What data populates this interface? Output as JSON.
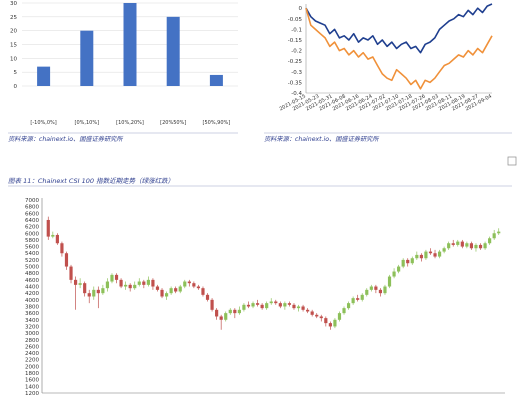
{
  "colors": {
    "bar": "#4472c4",
    "navy_line": "#1f3f8f",
    "orange_line": "#f0913a",
    "candle_up": "#8dc05a",
    "candle_down": "#c0504d",
    "caption": "#2f3f8f"
  },
  "sources": {
    "left": "资料来源：chainext.io、国盛证券研究所",
    "right": "资料来源：chainext.io、国盛证券研究所"
  },
  "figure_caption": "图表 11：Chainext CSI 100 指数近期走势（绿涨红跌）",
  "checkbox": {
    "checked": false
  },
  "chart_data": [
    {
      "type": "bar",
      "categories": [
        "[-10%,0%]",
        "[0%,10%]",
        "[10%,20%]",
        "[20%50%]",
        "[50%,90%]"
      ],
      "values": [
        7,
        20,
        30,
        25,
        4
      ],
      "yticks": [
        0,
        5,
        10,
        15,
        20,
        25,
        30
      ],
      "ylim": [
        0,
        30
      ],
      "grid": true
    },
    {
      "type": "line",
      "yticks": [
        0,
        -0.05,
        -0.1,
        -0.15,
        -0.2,
        -0.25,
        -0.3,
        -0.35,
        -0.4
      ],
      "ylim": [
        -0.4,
        0.02
      ],
      "xlabels": [
        "2021-05-15",
        "2021-05-23",
        "2021-05-31",
        "2021-06-08",
        "2021-06-16",
        "2021-06-24",
        "2021-07-02",
        "2021-07-10",
        "2021-07-18",
        "2021-07-26",
        "2021-08-03",
        "2021-08-11",
        "2021-08-19",
        "2021-08-27",
        "2021-09-04"
      ],
      "series": [
        {
          "color": "navy",
          "values": [
            0.0,
            -0.04,
            -0.06,
            -0.07,
            -0.08,
            -0.12,
            -0.1,
            -0.14,
            -0.13,
            -0.15,
            -0.12,
            -0.16,
            -0.14,
            -0.15,
            -0.13,
            -0.17,
            -0.15,
            -0.18,
            -0.16,
            -0.19,
            -0.17,
            -0.16,
            -0.19,
            -0.18,
            -0.21,
            -0.17,
            -0.16,
            -0.14,
            -0.1,
            -0.08,
            -0.06,
            -0.05,
            -0.03,
            -0.04,
            -0.01,
            -0.03,
            0.0,
            -0.02,
            0.01,
            0.02
          ]
        },
        {
          "color": "orange",
          "values": [
            0.0,
            -0.08,
            -0.1,
            -0.12,
            -0.14,
            -0.18,
            -0.16,
            -0.2,
            -0.19,
            -0.22,
            -0.2,
            -0.23,
            -0.21,
            -0.24,
            -0.23,
            -0.27,
            -0.31,
            -0.33,
            -0.34,
            -0.29,
            -0.31,
            -0.33,
            -0.36,
            -0.34,
            -0.38,
            -0.34,
            -0.35,
            -0.33,
            -0.3,
            -0.27,
            -0.26,
            -0.24,
            -0.22,
            -0.23,
            -0.2,
            -0.22,
            -0.19,
            -0.21,
            -0.17,
            -0.13
          ]
        }
      ]
    },
    {
      "type": "candlestick",
      "yticks": [
        1200,
        1400,
        1600,
        1800,
        2000,
        2200,
        2400,
        2600,
        2800,
        3000,
        3200,
        3400,
        3600,
        3800,
        4000,
        4200,
        4400,
        4600,
        4800,
        5000,
        5200,
        5400,
        5600,
        5800,
        6000,
        6200,
        6400,
        6600,
        6800,
        7000
      ],
      "ylim": [
        1200,
        7000
      ],
      "candles": [
        [
          6400,
          5900,
          6500,
          5800
        ],
        [
          5900,
          5950,
          6050,
          5850
        ],
        [
          5950,
          5700,
          6000,
          5650
        ],
        [
          5700,
          5400,
          5750,
          5300
        ],
        [
          5400,
          5000,
          5450,
          4900
        ],
        [
          5000,
          4600,
          5050,
          4500
        ],
        [
          4600,
          4450,
          4700,
          3700
        ],
        [
          4450,
          4500,
          4650,
          4350
        ],
        [
          4500,
          4200,
          4550,
          4100
        ],
        [
          4200,
          4100,
          4300,
          3900
        ],
        [
          4100,
          4300,
          4400,
          4000
        ],
        [
          4300,
          4200,
          4400,
          3750
        ],
        [
          4200,
          4350,
          4450,
          4150
        ],
        [
          4350,
          4550,
          4650,
          4250
        ],
        [
          4550,
          4750,
          4800,
          4500
        ],
        [
          4750,
          4600,
          4800,
          4500
        ],
        [
          4600,
          4400,
          4650,
          4350
        ],
        [
          4400,
          4450,
          4550,
          4300
        ],
        [
          4450,
          4350,
          4500,
          4250
        ],
        [
          4350,
          4450,
          4550,
          4300
        ],
        [
          4450,
          4550,
          4650,
          4400
        ],
        [
          4550,
          4450,
          4600,
          4350
        ],
        [
          4450,
          4600,
          4700,
          4400
        ],
        [
          4600,
          4400,
          4650,
          4300
        ],
        [
          4400,
          4300,
          4450,
          4250
        ],
        [
          4300,
          4100,
          4350,
          4050
        ],
        [
          4100,
          4200,
          4250,
          4000
        ],
        [
          4200,
          4350,
          4400,
          4150
        ],
        [
          4350,
          4250,
          4400,
          4200
        ],
        [
          4250,
          4400,
          4450,
          4200
        ],
        [
          4400,
          4550,
          4600,
          4350
        ],
        [
          4550,
          4500,
          4600,
          4400
        ],
        [
          4500,
          4400,
          4550,
          4350
        ],
        [
          4400,
          4350,
          4450,
          4300
        ],
        [
          4350,
          4150,
          4400,
          4100
        ],
        [
          4150,
          4000,
          4200,
          3950
        ],
        [
          4000,
          3700,
          4050,
          3650
        ],
        [
          3700,
          3500,
          3750,
          3400
        ],
        [
          3500,
          3400,
          3550,
          3100
        ],
        [
          3400,
          3600,
          3650,
          3350
        ],
        [
          3600,
          3700,
          3750,
          3550
        ],
        [
          3700,
          3600,
          3750,
          3450
        ],
        [
          3600,
          3700,
          3800,
          3550
        ],
        [
          3700,
          3850,
          3900,
          3650
        ],
        [
          3850,
          3800,
          3950,
          3750
        ],
        [
          3800,
          3900,
          3950,
          3750
        ],
        [
          3900,
          3850,
          4000,
          3800
        ],
        [
          3850,
          3750,
          3900,
          3700
        ],
        [
          3750,
          3900,
          3950,
          3700
        ],
        [
          3900,
          3950,
          4050,
          3850
        ],
        [
          3950,
          3900,
          4000,
          3850
        ],
        [
          3900,
          3800,
          3950,
          3750
        ],
        [
          3800,
          3900,
          3950,
          3700
        ],
        [
          3900,
          3850,
          3950,
          3800
        ],
        [
          3850,
          3750,
          3900,
          3700
        ],
        [
          3750,
          3800,
          3850,
          3650
        ],
        [
          3800,
          3700,
          3850,
          3650
        ],
        [
          3700,
          3650,
          3750,
          3600
        ],
        [
          3650,
          3550,
          3700,
          3500
        ],
        [
          3550,
          3500,
          3600,
          3450
        ],
        [
          3500,
          3450,
          3550,
          3350
        ],
        [
          3450,
          3300,
          3500,
          3200
        ],
        [
          3300,
          3200,
          3350,
          3100
        ],
        [
          3200,
          3400,
          3450,
          3150
        ],
        [
          3400,
          3600,
          3650,
          3350
        ],
        [
          3600,
          3750,
          3800,
          3550
        ],
        [
          3750,
          3900,
          3950,
          3700
        ],
        [
          3900,
          4050,
          4100,
          3850
        ],
        [
          4050,
          4000,
          4150,
          3950
        ],
        [
          4000,
          4150,
          4200,
          3950
        ],
        [
          4150,
          4300,
          4350,
          4100
        ],
        [
          4300,
          4400,
          4450,
          4250
        ],
        [
          4400,
          4300,
          4450,
          4200
        ],
        [
          4300,
          4200,
          4350,
          4100
        ],
        [
          4200,
          4400,
          4450,
          4150
        ],
        [
          4400,
          4700,
          4750,
          4350
        ],
        [
          4700,
          4850,
          4950,
          4650
        ],
        [
          4850,
          5000,
          5050,
          4800
        ],
        [
          5000,
          5200,
          5250,
          4950
        ],
        [
          5200,
          5100,
          5250,
          5000
        ],
        [
          5100,
          5250,
          5300,
          5050
        ],
        [
          5250,
          5350,
          5450,
          5200
        ],
        [
          5350,
          5250,
          5400,
          5150
        ],
        [
          5250,
          5450,
          5500,
          5200
        ],
        [
          5450,
          5400,
          5550,
          5350
        ],
        [
          5400,
          5300,
          5500,
          5250
        ],
        [
          5300,
          5450,
          5500,
          5250
        ],
        [
          5450,
          5550,
          5600,
          5400
        ],
        [
          5550,
          5700,
          5750,
          5500
        ],
        [
          5700,
          5650,
          5800,
          5600
        ],
        [
          5650,
          5750,
          5800,
          5600
        ],
        [
          5750,
          5600,
          5800,
          5550
        ],
        [
          5600,
          5700,
          5750,
          5550
        ],
        [
          5700,
          5550,
          5750,
          5500
        ],
        [
          5550,
          5650,
          5700,
          5450
        ],
        [
          5650,
          5550,
          5700,
          5500
        ],
        [
          5550,
          5700,
          5750,
          5500
        ],
        [
          5700,
          5850,
          5900,
          5650
        ],
        [
          5850,
          6000,
          6100,
          5800
        ],
        [
          6000,
          6050,
          6150,
          5950
        ]
      ]
    }
  ]
}
